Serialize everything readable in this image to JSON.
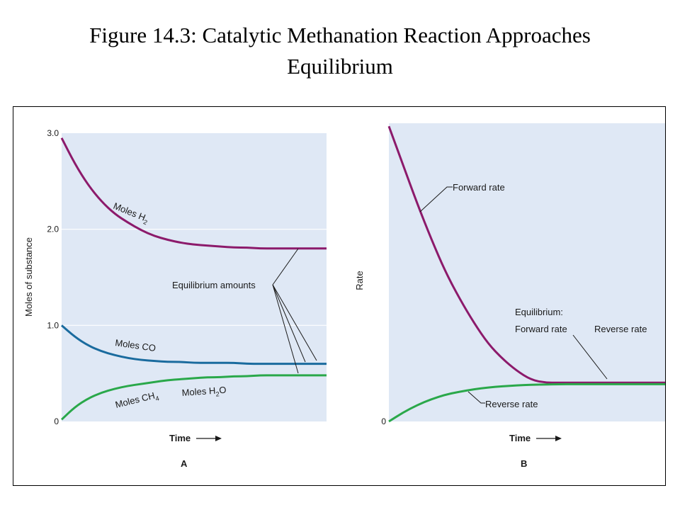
{
  "title": {
    "line1": "Figure 14.3: Catalytic Methanation Reaction Approaches",
    "line2": "Equilibrium"
  },
  "colors": {
    "plot_bg": "#dfe8f5",
    "h2": "#8c1a6b",
    "co": "#1a6b9e",
    "ch4_h2o": "#2aa84a",
    "forward": "#8c1a6b",
    "reverse": "#2aa84a",
    "grid": "#ffffff"
  },
  "chart_data": [
    {
      "type": "line",
      "panel_label": "A",
      "xlabel": "Time",
      "ylabel": "Moles of substance",
      "ylim": [
        0,
        3.0
      ],
      "y_ticks": [
        "0",
        "1.0",
        "2.0",
        "3.0"
      ],
      "y_tick_values": [
        0,
        1.0,
        2.0,
        3.0
      ],
      "grid": "horizontal",
      "x": [
        0,
        0.05,
        0.1,
        0.15,
        0.2,
        0.25,
        0.3,
        0.35,
        0.4,
        0.45,
        0.5,
        0.55,
        0.6,
        0.65,
        0.7,
        0.75,
        0.8,
        0.85,
        0.9,
        0.95,
        1.0
      ],
      "series": [
        {
          "name": "Moles H2",
          "values": [
            2.95,
            2.68,
            2.46,
            2.29,
            2.16,
            2.07,
            1.99,
            1.93,
            1.89,
            1.86,
            1.84,
            1.83,
            1.82,
            1.81,
            1.81,
            1.8,
            1.8,
            1.8,
            1.8,
            1.8,
            1.8
          ]
        },
        {
          "name": "Moles CO",
          "values": [
            1.0,
            0.88,
            0.79,
            0.73,
            0.69,
            0.66,
            0.64,
            0.63,
            0.62,
            0.62,
            0.61,
            0.61,
            0.61,
            0.61,
            0.6,
            0.6,
            0.6,
            0.6,
            0.6,
            0.6,
            0.6
          ]
        },
        {
          "name": "Moles CH4 / Moles H2O",
          "values": [
            0.02,
            0.15,
            0.24,
            0.3,
            0.34,
            0.37,
            0.39,
            0.41,
            0.43,
            0.44,
            0.45,
            0.46,
            0.46,
            0.47,
            0.47,
            0.48,
            0.48,
            0.48,
            0.48,
            0.48,
            0.48
          ]
        }
      ],
      "annotations": {
        "h2": "Moles H",
        "h2_sub": "2",
        "co": "Moles CO",
        "ch4": "Moles CH",
        "ch4_sub": "4",
        "h2o_a": "Moles H",
        "h2o_sub": "2",
        "h2o_b": "O",
        "equilibrium": "Equilibrium amounts"
      }
    },
    {
      "type": "line",
      "panel_label": "B",
      "xlabel": "Time",
      "ylabel": "Rate",
      "ylim": [
        0,
        1.0
      ],
      "y_ticks": [
        "0"
      ],
      "y_tick_values": [
        0
      ],
      "grid": "none",
      "x": [
        0,
        0.05,
        0.1,
        0.15,
        0.2,
        0.25,
        0.3,
        0.35,
        0.4,
        0.45,
        0.5,
        0.55,
        0.6,
        0.65,
        0.7,
        0.75,
        0.8,
        0.85,
        0.9,
        0.95,
        1.0
      ],
      "series": [
        {
          "name": "Forward rate",
          "values": [
            0.99,
            0.86,
            0.73,
            0.61,
            0.5,
            0.41,
            0.33,
            0.26,
            0.21,
            0.17,
            0.14,
            0.13,
            0.13,
            0.13,
            0.13,
            0.13,
            0.13,
            0.13,
            0.13,
            0.13,
            0.13
          ]
        },
        {
          "name": "Reverse rate",
          "values": [
            0.0,
            0.03,
            0.055,
            0.075,
            0.09,
            0.1,
            0.108,
            0.114,
            0.118,
            0.121,
            0.123,
            0.124,
            0.125,
            0.125,
            0.125,
            0.125,
            0.125,
            0.125,
            0.125,
            0.125,
            0.125
          ]
        }
      ],
      "annotations": {
        "forward": "Forward rate",
        "reverse": "Reverse rate",
        "eq_line1": "Equilibrium:",
        "eq_line2": "Forward rate",
        "eq_right": "Reverse rate"
      }
    }
  ]
}
